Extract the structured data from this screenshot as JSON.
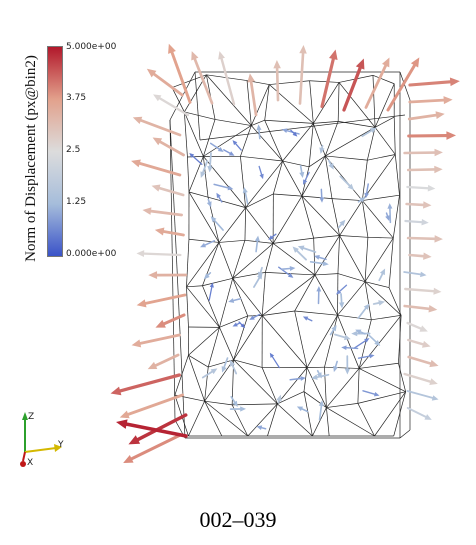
{
  "colorbar": {
    "title": "Norm of Displacement (px@bin2)",
    "ticks": [
      "5.000e+00",
      "3.75",
      "2.5",
      "1.25",
      "0.000e+00"
    ],
    "colors": {
      "high": "#b2182b",
      "mid_high": "#e2a18c",
      "mid": "#dcdcdc",
      "mid_low": "#a6bddb",
      "low": "#3a53c8"
    }
  },
  "axes_triad": {
    "z_label": "Z",
    "y_label": "Y",
    "x_label": "X",
    "colors": {
      "z": "#2ca02c",
      "y": "#d4b800",
      "x": "#c01818"
    }
  },
  "caption": "002–039"
}
